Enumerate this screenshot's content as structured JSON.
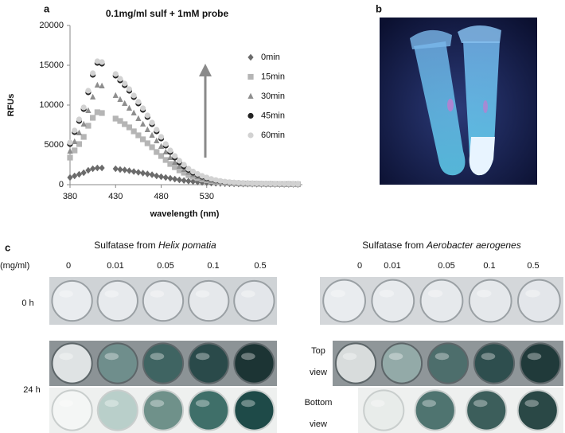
{
  "panel_labels": [
    "a",
    "b",
    "c"
  ],
  "chart_data": {
    "type": "scatter",
    "title": "0.1mg/ml sulf + 1mM probe",
    "x_label": "wavelength (nm)",
    "y_label": "RFUs",
    "x": [
      380,
      385,
      390,
      395,
      400,
      405,
      410,
      415,
      420,
      425,
      430,
      435,
      440,
      445,
      450,
      455,
      460,
      465,
      470,
      475,
      480,
      485,
      490,
      495,
      500,
      505,
      510,
      515,
      520,
      525,
      530,
      535,
      540,
      545,
      550,
      555,
      560,
      565,
      570,
      575,
      580,
      585,
      590,
      595,
      600,
      605,
      610,
      615,
      620,
      625,
      630
    ],
    "series": [
      {
        "name": "0min",
        "color": "#6b6b6b",
        "marker": "diamond",
        "values": [
          900,
          1100,
          1300,
          1500,
          1800,
          2000,
          2100,
          2100,
          null,
          null,
          2000,
          1900,
          1850,
          1750,
          1650,
          1550,
          1450,
          1350,
          1250,
          1100,
          1000,
          900,
          800,
          700,
          600,
          520,
          450,
          390,
          330,
          280,
          240,
          200,
          170,
          145,
          125,
          110,
          95,
          85,
          75,
          65,
          60,
          55,
          50,
          45,
          40,
          38,
          35,
          32,
          30,
          28,
          25
        ]
      },
      {
        "name": "15min",
        "color": "#b5b5b5",
        "marker": "square",
        "values": [
          3400,
          4300,
          5100,
          6000,
          7400,
          8400,
          9100,
          9000,
          null,
          null,
          8300,
          8000,
          7600,
          7200,
          6700,
          6200,
          5700,
          5200,
          4700,
          4100,
          3600,
          3100,
          2600,
          2200,
          1800,
          1500,
          1200,
          1000,
          820,
          670,
          550,
          450,
          370,
          300,
          250,
          210,
          180,
          155,
          135,
          120,
          110,
          100,
          92,
          85,
          80,
          75,
          70,
          65,
          60,
          55,
          50
        ]
      },
      {
        "name": "30min",
        "color": "#8e8e8e",
        "marker": "triangle",
        "values": [
          4200,
          5400,
          6500,
          7600,
          9300,
          11000,
          12500,
          12400,
          null,
          null,
          11200,
          10700,
          10200,
          9600,
          9000,
          8300,
          7600,
          6900,
          6200,
          5500,
          4800,
          4100,
          3400,
          2800,
          2300,
          1900,
          1550,
          1250,
          1000,
          820,
          670,
          540,
          440,
          360,
          300,
          250,
          210,
          180,
          160,
          145,
          130,
          120,
          110,
          100,
          95,
          90,
          85,
          80,
          75,
          70,
          65
        ]
      },
      {
        "name": "45min",
        "color": "#222222",
        "marker": "circle",
        "values": [
          5100,
          6600,
          8000,
          9500,
          11600,
          13800,
          15300,
          15200,
          null,
          null,
          13700,
          13100,
          12500,
          11800,
          11000,
          10200,
          9400,
          8500,
          7600,
          6700,
          5800,
          4900,
          4100,
          3400,
          2800,
          2300,
          1850,
          1500,
          1250,
          1000,
          820,
          660,
          530,
          430,
          350,
          290,
          250,
          210,
          185,
          165,
          150,
          140,
          130,
          120,
          110,
          100,
          95,
          90,
          85,
          80,
          75
        ]
      },
      {
        "name": "60min",
        "color": "#d2d2d2",
        "marker": "circle",
        "values": [
          5300,
          6800,
          8200,
          9700,
          11800,
          14000,
          15500,
          15400,
          null,
          null,
          13900,
          13300,
          12700,
          12000,
          11200,
          10400,
          9600,
          8700,
          7800,
          6900,
          6000,
          5100,
          4300,
          3600,
          3000,
          2500,
          2000,
          1650,
          1350,
          1100,
          900,
          720,
          580,
          470,
          380,
          320,
          270,
          230,
          200,
          180,
          160,
          150,
          140,
          130,
          120,
          110,
          105,
          100,
          95,
          90,
          85
        ]
      }
    ],
    "xlim": [
      380,
      635
    ],
    "xticks": [
      380,
      430,
      480,
      530
    ],
    "ylim": [
      0,
      20000
    ],
    "yticks": [
      0,
      5000,
      10000,
      15000,
      20000
    ],
    "legend": "right"
  },
  "panel_c": {
    "unit": "(mg/ml)",
    "groups": [
      {
        "prefix": "Sulfatase from ",
        "species": "Helix pomatia",
        "concentrations": [
          "0",
          "0.01",
          "0.05",
          "0.1",
          "0.5"
        ]
      },
      {
        "prefix": "Sulfatase from ",
        "species": "Aerobacter aerogenes",
        "concentrations": [
          "0",
          "0.01",
          "0.05",
          "0.1",
          "0.5"
        ]
      }
    ],
    "rows": [
      "0 h",
      "24 h"
    ],
    "views": [
      [
        "Top",
        "view"
      ],
      [
        "Bottom",
        "view"
      ]
    ]
  }
}
